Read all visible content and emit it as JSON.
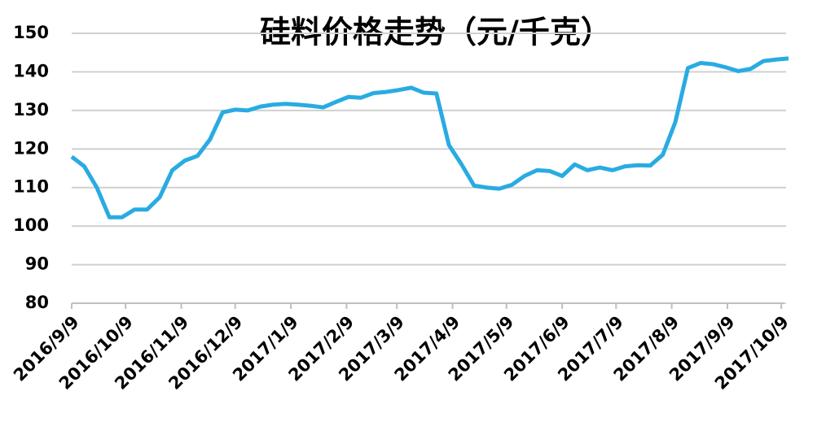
{
  "chart_data": {
    "type": "line",
    "title": "硅料价格走势（元/千克）",
    "x": [
      "2016/9/9",
      "2016/9/16",
      "2016/9/23",
      "2016/9/30",
      "2016/10/7",
      "2016/10/14",
      "2016/10/21",
      "2016/10/28",
      "2016/11/4",
      "2016/11/11",
      "2016/11/18",
      "2016/11/25",
      "2016/12/2",
      "2016/12/9",
      "2016/12/16",
      "2016/12/23",
      "2016/12/30",
      "2017/1/6",
      "2017/1/13",
      "2017/1/20",
      "2017/1/27",
      "2017/2/3",
      "2017/2/10",
      "2017/2/17",
      "2017/2/24",
      "2017/3/3",
      "2017/3/10",
      "2017/3/17",
      "2017/3/24",
      "2017/3/31",
      "2017/4/7",
      "2017/4/14",
      "2017/4/21",
      "2017/4/28",
      "2017/5/5",
      "2017/5/12",
      "2017/5/19",
      "2017/5/26",
      "2017/6/2",
      "2017/6/9",
      "2017/6/16",
      "2017/6/23",
      "2017/6/30",
      "2017/7/7",
      "2017/7/14",
      "2017/7/21",
      "2017/7/28",
      "2017/8/4",
      "2017/8/11",
      "2017/8/18",
      "2017/8/25",
      "2017/9/1",
      "2017/9/8",
      "2017/9/15",
      "2017/9/22",
      "2017/9/29",
      "2017/10/6",
      "2017/10/13"
    ],
    "series": [
      {
        "color": "#29abe2",
        "values": [
          118,
          115.5,
          110,
          102.3,
          102.3,
          104.3,
          104.3,
          107.5,
          114.5,
          117,
          118.2,
          122.5,
          129.5,
          130.2,
          130,
          131,
          131.5,
          131.7,
          131.5,
          131.2,
          130.8,
          132.2,
          133.5,
          133.3,
          134.5,
          134.8,
          135.3,
          135.9,
          134.6,
          134.4,
          121,
          116,
          110.5,
          110,
          109.7,
          110.7,
          113,
          114.5,
          114.3,
          113,
          116,
          114.5,
          115.2,
          114.5,
          115.5,
          115.8,
          115.7,
          118.5,
          127,
          141,
          142.3,
          142,
          141.2,
          140.2,
          140.8,
          142.8,
          143.2,
          143.5
        ]
      }
    ],
    "xlim": [
      "2016/9/9",
      "2017/10/13"
    ],
    "xticks": [
      "2016/9/9",
      "2016/10/9",
      "2016/11/9",
      "2016/12/9",
      "2017/1/9",
      "2017/2/9",
      "2017/3/9",
      "2017/4/9",
      "2017/5/9",
      "2017/6/9",
      "2017/7/9",
      "2017/8/9",
      "2017/9/9",
      "2017/10/9"
    ],
    "ylim": [
      80,
      150
    ],
    "yticks": [
      80,
      90,
      100,
      110,
      120,
      130,
      140,
      150
    ],
    "grid": true
  }
}
